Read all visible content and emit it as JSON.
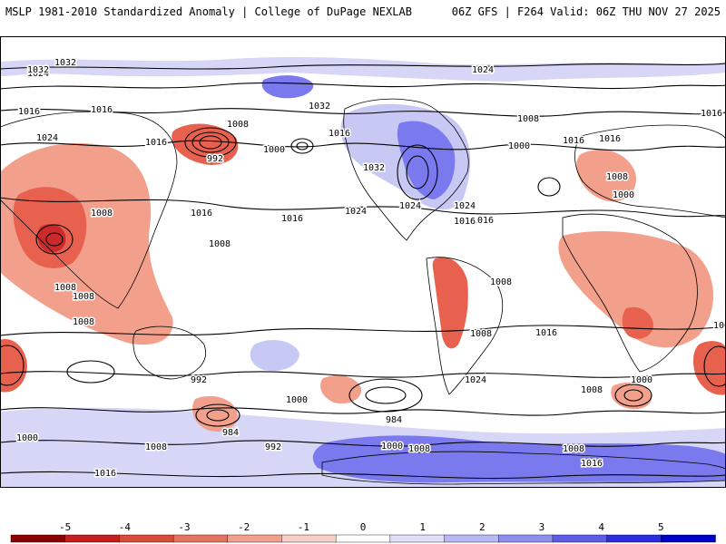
{
  "header": {
    "left": "MSLP 1981-2010 Standardized Anomaly | College of DuPage NEXLAB",
    "right": "06Z GFS | F264 Valid: 06Z THU NOV 27 2025"
  },
  "map": {
    "isobar_labels": [
      "1032",
      "1024",
      "1016",
      "1016",
      "1024",
      "1032",
      "1008",
      "992",
      "1000",
      "1016",
      "1008",
      "1008",
      "1008",
      "1008",
      "1008",
      "1016",
      "1024",
      "1016",
      "1024",
      "1016",
      "1000",
      "1008",
      "1016",
      "1016",
      "1008",
      "1016",
      "1008",
      "992",
      "1000",
      "984",
      "984",
      "992",
      "1000",
      "1008",
      "1016",
      "1024",
      "1000",
      "1008",
      "1016",
      "1008",
      "1000",
      "1008",
      "1032",
      "1024",
      "1016",
      "1016",
      "1008",
      "1000",
      "1008",
      "1016",
      "1024",
      "1032"
    ],
    "colors": {
      "neg_strong": "#cc2a2a",
      "neg_med": "#e8614f",
      "neg_light": "#f2a08c",
      "pos_light": "#c8c8f5",
      "pos_med": "#7a7aee",
      "land": "#000000",
      "isobar": "#000000"
    }
  },
  "colorbar": {
    "ticks": [
      "-5",
      "-4",
      "-3",
      "-2",
      "-1",
      "0",
      "1",
      "2",
      "3",
      "4",
      "5"
    ],
    "colors": [
      "#8b0000",
      "#c41e1e",
      "#d84a3a",
      "#e6735f",
      "#f2a08c",
      "#f8cfc4",
      "#ffffff",
      "#dedef8",
      "#b8b8f3",
      "#8f8fee",
      "#5c5ce8",
      "#2b2be0",
      "#0000c8"
    ]
  }
}
